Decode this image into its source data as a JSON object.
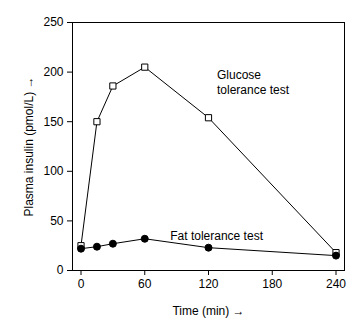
{
  "chart_data": {
    "type": "line",
    "x_label": "Time (min)",
    "y_label": "Plasma insulin (pmol/L)",
    "x": [
      0,
      15,
      30,
      60,
      120,
      240
    ],
    "series": [
      {
        "name": "Glucose tolerance test",
        "color": "#000000",
        "marker": "open_square",
        "values": [
          25,
          150,
          186,
          205,
          154,
          18
        ]
      },
      {
        "name": "Fat tolerance test",
        "color": "#000000",
        "marker": "circle",
        "values": [
          22,
          24,
          27,
          32,
          23,
          15
        ]
      }
    ],
    "annotations": [
      {
        "text": "Glucose\ntolerance test",
        "x": 128,
        "y": 190
      },
      {
        "text": "Fat tolerance test",
        "x": 84,
        "y": 35
      }
    ],
    "xlim": [
      -8,
      248
    ],
    "xticks": [
      0,
      60,
      120,
      180,
      240
    ],
    "ylim": [
      0,
      250
    ],
    "yticks": [
      0,
      50,
      100,
      150,
      200,
      250
    ],
    "grid": false
  }
}
